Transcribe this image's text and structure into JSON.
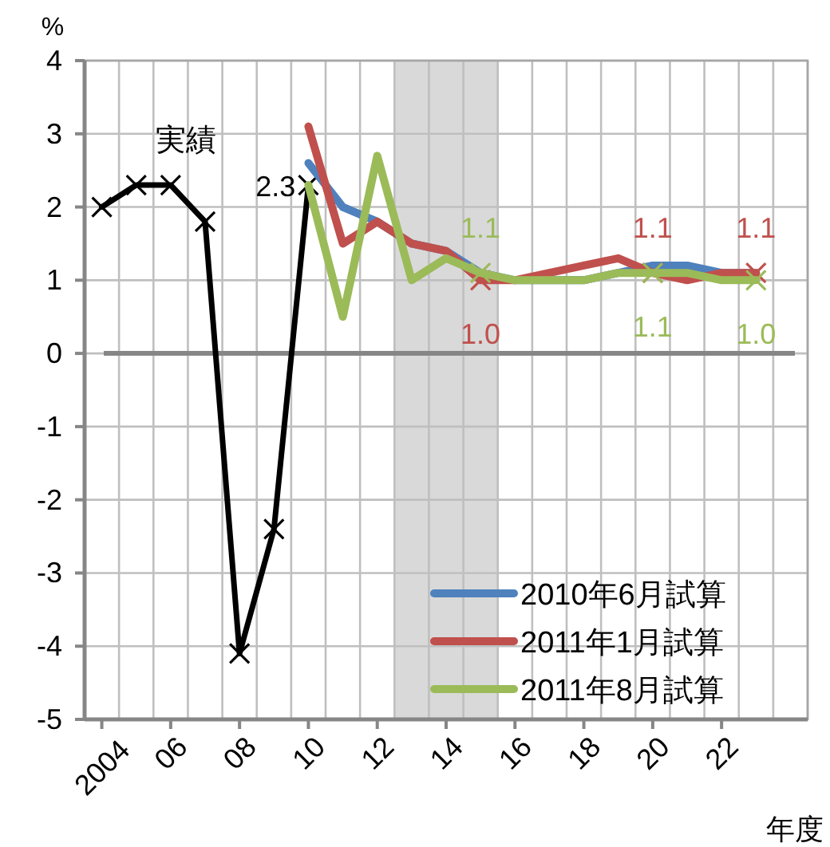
{
  "chart_data": {
    "type": "line",
    "ylabel": "%",
    "xlabel": "年度",
    "xlim": [
      2003.5,
      2024.5
    ],
    "xticks": [
      {
        "value": 2004,
        "label": "2004"
      },
      {
        "value": 2006,
        "label": "06"
      },
      {
        "value": 2008,
        "label": "08"
      },
      {
        "value": 2010,
        "label": "10"
      },
      {
        "value": 2012,
        "label": "12"
      },
      {
        "value": 2014,
        "label": "14"
      },
      {
        "value": 2016,
        "label": "16"
      },
      {
        "value": 2018,
        "label": "18"
      },
      {
        "value": 2020,
        "label": "20"
      },
      {
        "value": 2022,
        "label": "22"
      }
    ],
    "ylim": [
      -5,
      4
    ],
    "yticks": [
      -5,
      -4,
      -3,
      -2,
      -1,
      0,
      1,
      2,
      3,
      4
    ],
    "grid": true,
    "legend": "bottom right",
    "annotations": [
      "実績"
    ],
    "ref_lines": [
      {
        "axis": "y",
        "value": 0,
        "color": "#868686"
      }
    ],
    "bands": [
      {
        "axis": "x",
        "from": 2012.5,
        "to": 2015.5,
        "color": "#d9d9d9"
      }
    ],
    "series": [
      {
        "color": "#000000",
        "marker": "cross",
        "x": [
          2004,
          2005,
          2006,
          2007,
          2008,
          2009,
          2010
        ],
        "values": [
          2.0,
          2.3,
          2.3,
          1.8,
          -4.1,
          -2.4,
          2.3
        ],
        "value_labels": [
          null,
          null,
          null,
          null,
          null,
          null,
          "2.3"
        ]
      },
      {
        "name": "2010年6月試算",
        "color": "#4f81bd",
        "marker": "none",
        "x": [
          2010,
          2011,
          2012,
          2013,
          2014,
          2015,
          2016,
          2017,
          2018,
          2019,
          2020,
          2021,
          2022,
          2023
        ],
        "values": [
          2.6,
          2.0,
          1.8,
          1.5,
          1.4,
          1.1,
          1.0,
          1.0,
          1.0,
          1.1,
          1.2,
          1.2,
          1.1,
          1.1
        ]
      },
      {
        "name": "2011年1月試算",
        "color": "#c0504d",
        "marker": "none",
        "x": [
          2010,
          2011,
          2012,
          2013,
          2014,
          2015,
          2016,
          2017,
          2018,
          2019,
          2020,
          2021,
          2022,
          2023
        ],
        "values": [
          3.1,
          1.5,
          1.8,
          1.5,
          1.4,
          1.0,
          1.0,
          1.1,
          1.2,
          1.3,
          1.1,
          1.0,
          1.1,
          1.1
        ],
        "value_labels": [
          null,
          null,
          null,
          null,
          null,
          "1.0",
          null,
          null,
          null,
          null,
          "1.1",
          null,
          null,
          "1.1"
        ]
      },
      {
        "name": "2011年8月試算",
        "color": "#9bbb59",
        "marker": "none",
        "x": [
          2010,
          2011,
          2012,
          2013,
          2014,
          2015,
          2016,
          2017,
          2018,
          2019,
          2020,
          2021,
          2022,
          2023
        ],
        "values": [
          2.3,
          0.5,
          2.7,
          1.0,
          1.3,
          1.1,
          1.0,
          1.0,
          1.0,
          1.1,
          1.1,
          1.1,
          1.0,
          1.0
        ],
        "value_labels": [
          null,
          null,
          null,
          null,
          null,
          "1.1",
          null,
          null,
          null,
          null,
          "1.1",
          null,
          null,
          "1.0"
        ]
      }
    ]
  }
}
